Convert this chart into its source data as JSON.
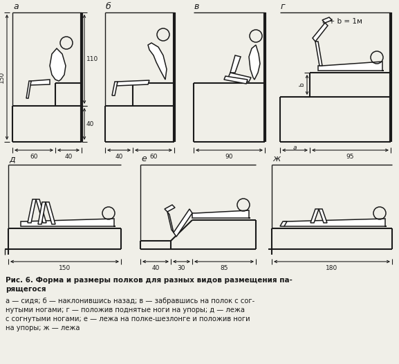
{
  "bg_color": "#f0efe8",
  "line_color": "#1a1a1a",
  "caption_bold": "Рис. 6. Форма и размеры полков для разных видов размещения па-\nрящегося",
  "caption_normal": "а — сидя; б — наклонившись назад; в — забравшись на полок с сог-\nнутыми ногами; г — положив поднятые ноги на упоры; д — лежа\nс согнутыми ногами; е — лежа на полке-шезлонге и положив ноги\nна упоры; ж — лежа",
  "panel_labels": [
    "а",
    "б",
    "в",
    "г",
    "д",
    "е",
    "ж"
  ]
}
